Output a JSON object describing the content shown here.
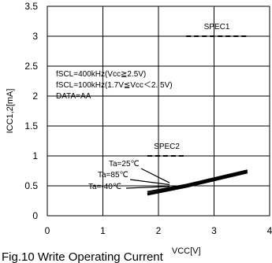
{
  "chart_data": {
    "type": "line",
    "title": "",
    "caption": "Fig.10 Write Operating Current",
    "xlabel": "VCC[V]",
    "ylabel": "ICC1,2[mA]",
    "xlim": [
      0,
      4
    ],
    "ylim": [
      0,
      3.5
    ],
    "x_ticks": [
      0,
      1,
      2,
      3,
      4
    ],
    "y_ticks": [
      0,
      0.5,
      1,
      1.5,
      2,
      2.5,
      3,
      3.5
    ],
    "grid": true,
    "conditions": [
      "fSCL=400kHz(Vcc≧2.5V)",
      "fSCL=100kHz(1.7V≦Vcc＜2. 5V)",
      "DATA=AA"
    ],
    "specs": [
      {
        "label": "SPEC1",
        "x": [
          2.5,
          3.6
        ],
        "y": 3.0
      },
      {
        "label": "SPEC2",
        "x": [
          1.8,
          2.5
        ],
        "y": 1.0
      }
    ],
    "series": [
      {
        "name": "Ta=25℃",
        "x": [
          1.8,
          2.5,
          3.6
        ],
        "y": [
          0.4,
          0.52,
          0.76
        ]
      },
      {
        "name": "Ta=85℃",
        "x": [
          1.8,
          2.5,
          3.6
        ],
        "y": [
          0.37,
          0.5,
          0.74
        ]
      },
      {
        "name": "Ta=-40℃",
        "x": [
          1.8,
          2.5,
          3.6
        ],
        "y": [
          0.35,
          0.48,
          0.72
        ]
      }
    ],
    "series_labels": [
      {
        "text": "Ta=25℃",
        "pointer_to": [
          2.2,
          0.55
        ]
      },
      {
        "text": "Ta=85℃",
        "pointer_to": [
          2.2,
          0.52
        ]
      },
      {
        "text": "Ta=-40℃",
        "pointer_to": [
          2.2,
          0.49
        ]
      }
    ]
  }
}
